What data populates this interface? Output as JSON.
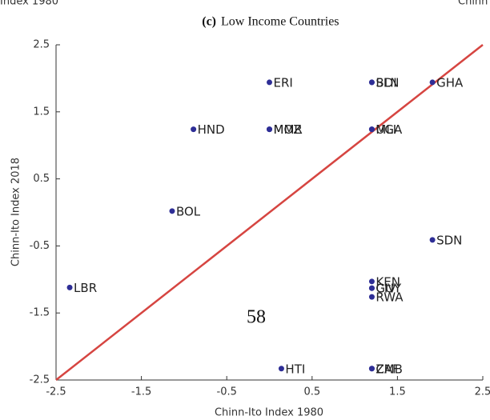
{
  "chart_data": {
    "type": "scatter",
    "header_left": "Index 1980",
    "header_right": "Chinn",
    "caption_label": "(c)",
    "title": "Low Income Countries",
    "xlabel": "Chinn-Ito Index 1980",
    "ylabel": "Chinn-Ito Index 2018",
    "page_number": "58",
    "xlim": [
      -2.5,
      2.5
    ],
    "ylim": [
      -2.5,
      2.5
    ],
    "xticks": [
      -2.5,
      -1.5,
      -0.5,
      0.5,
      1.5,
      2.5
    ],
    "yticks": [
      -2.5,
      -1.5,
      -0.5,
      0.5,
      1.5,
      2.5
    ],
    "reference_line_color": "#d64541",
    "series": [
      {
        "color": "#2e2e96",
        "labels": [
          "ERI",
          "BDI",
          "SLN",
          "GHA",
          "HND",
          "MOZ",
          "MMR",
          "MLI",
          "UGA",
          "BOL",
          "SDN",
          "LBR",
          "KEN",
          "GUY",
          "CIV",
          "RWA",
          "HTI",
          "ZMB",
          "CAF"
        ],
        "x": [
          0,
          1.2,
          1.2,
          1.91,
          -0.89,
          0,
          0,
          1.2,
          1.2,
          -1.14,
          1.91,
          -2.34,
          1.2,
          1.2,
          1.2,
          1.2,
          0.14,
          1.2,
          1.2
        ],
        "values": [
          1.94,
          1.94,
          1.94,
          1.94,
          1.24,
          1.24,
          1.24,
          1.24,
          1.24,
          0.02,
          -0.41,
          -1.12,
          -1.03,
          -1.13,
          -1.13,
          -1.26,
          -2.33,
          -2.33,
          -2.33
        ]
      }
    ]
  }
}
